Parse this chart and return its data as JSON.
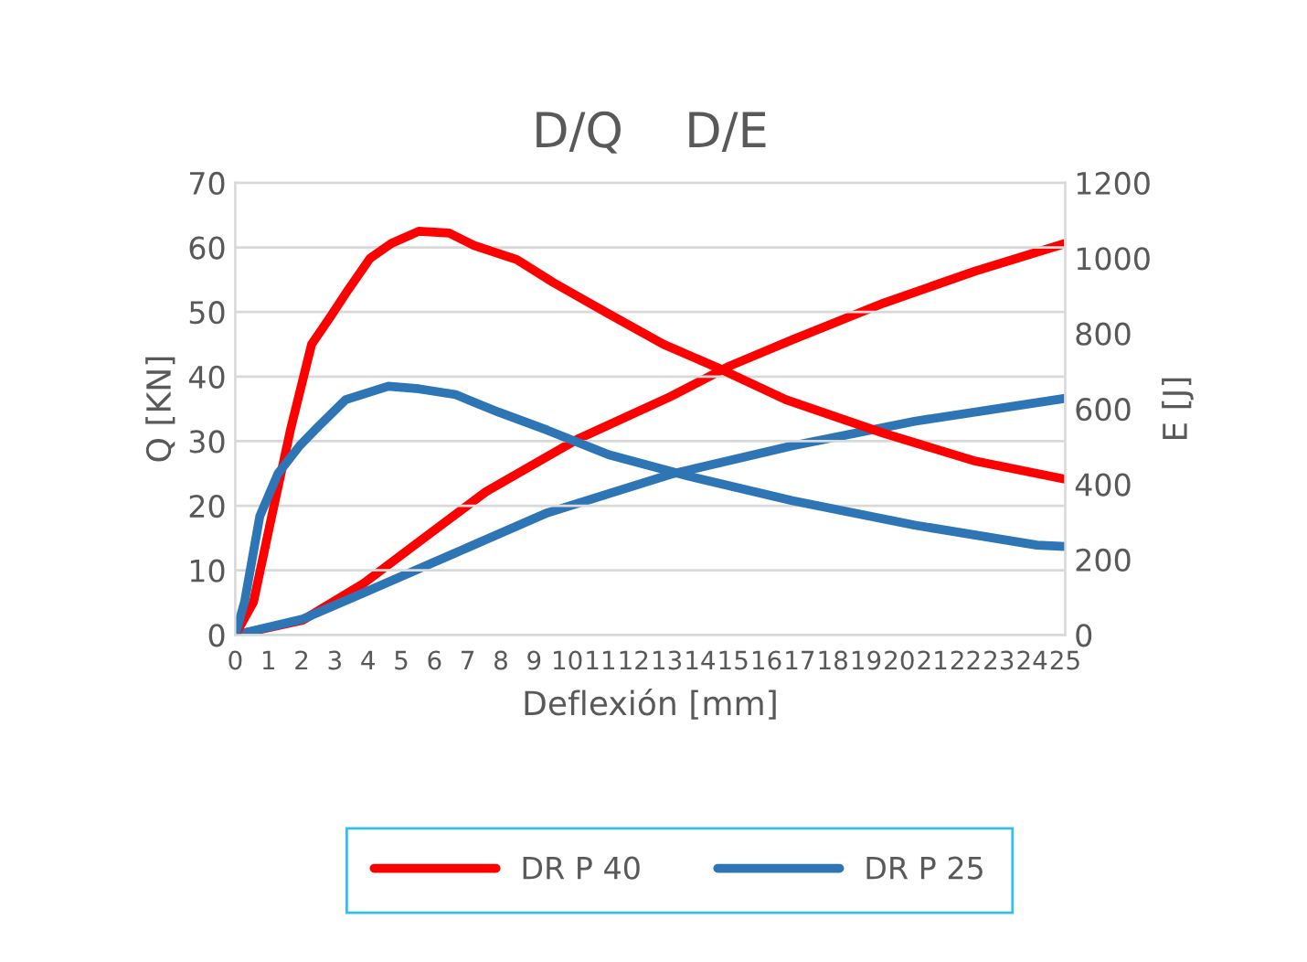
{
  "chart_data": {
    "type": "line",
    "title": "D/Q    D/E",
    "xlabel": "Deflexión [mm]",
    "ylabel": "Q [KN]",
    "y2label": "E [J]",
    "xlim": [
      0,
      25
    ],
    "xticks": [
      0,
      1,
      2,
      3,
      4,
      5,
      6,
      7,
      8,
      9,
      10,
      11,
      12,
      13,
      14,
      15,
      16,
      17,
      18,
      19,
      20,
      21,
      22,
      23,
      24,
      25
    ],
    "ylim": [
      0,
      70
    ],
    "yticks": [
      0,
      10,
      20,
      30,
      40,
      50,
      60,
      70
    ],
    "y2lim": [
      0,
      1200
    ],
    "y2ticks": [
      0,
      200,
      400,
      600,
      800,
      1000,
      1200
    ],
    "grid": "y",
    "legend": "bottom",
    "marker": "none",
    "line_style": "solid",
    "series": [
      {
        "name": "DR P 40",
        "color": "#ff0000",
        "x": [
          0,
          0.55,
          1.1,
          1.66,
          2.3,
          2.86,
          3.41,
          4.06,
          4.7,
          5.53,
          6.45,
          7.19,
          8.48,
          9.6,
          11.25,
          12.9,
          14.6,
          16.59,
          19.54,
          22.3,
          25
        ],
        "values": [
          0,
          5.1,
          18.4,
          31.7,
          45,
          49.2,
          53.5,
          58.3,
          60.6,
          62.5,
          62.2,
          60.3,
          58.1,
          54.5,
          49.7,
          45,
          41.2,
          36.4,
          31.2,
          26.9,
          24.1
        ]
      },
      {
        "name": "DR P 25",
        "color": "#2e75b6",
        "x": [
          0,
          0.28,
          0.74,
          1.29,
          1.94,
          2.49,
          3.32,
          4.61,
          5.53,
          6.64,
          7.93,
          9.4,
          11.25,
          13.64,
          16.78,
          20.46,
          24.15,
          25
        ],
        "values": [
          0,
          5.1,
          18.4,
          25,
          29.3,
          32.2,
          36.4,
          38.5,
          38.1,
          37.2,
          34.5,
          31.7,
          27.9,
          24.6,
          20.8,
          17,
          13.9,
          13.7
        ]
      },
      {
        "color": "#ff0000",
        "axis": "y2",
        "x": [
          0,
          2.03,
          3.87,
          5.71,
          7.55,
          10.3,
          13.1,
          14.9,
          16.8,
          19.54,
          22.3,
          25
        ],
        "values": [
          0,
          39,
          137,
          259,
          380,
          519,
          632,
          714,
          784,
          881,
          966,
          1039
        ]
      },
      {
        "color": "#2e75b6",
        "axis": "y2",
        "x": [
          0,
          2.03,
          3.87,
          6.64,
          9.4,
          13.1,
          16.78,
          20.46,
          25
        ],
        "values": [
          0,
          42,
          112,
          218,
          324,
          426,
          502,
          567,
          628
        ]
      }
    ]
  }
}
